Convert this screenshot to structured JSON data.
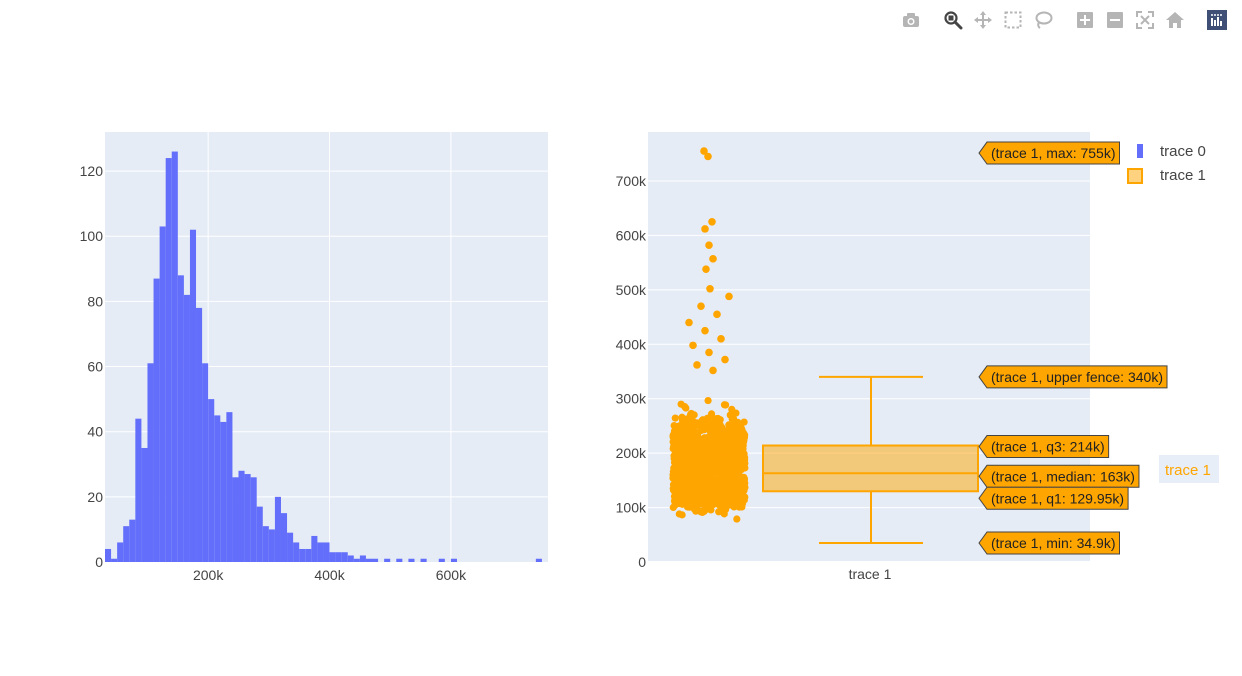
{
  "modebar": {
    "buttons": [
      {
        "icon": "camera-icon",
        "group": 0,
        "active": false
      },
      {
        "icon": "zoom-icon",
        "group": 1,
        "active": true
      },
      {
        "icon": "pan-icon",
        "group": 1,
        "active": false
      },
      {
        "icon": "box-select-icon",
        "group": 1,
        "active": false
      },
      {
        "icon": "lasso-select-icon",
        "group": 1,
        "active": false
      },
      {
        "icon": "zoom-in-icon",
        "group": 2,
        "active": false
      },
      {
        "icon": "zoom-out-icon",
        "group": 2,
        "active": false
      },
      {
        "icon": "autoscale-icon",
        "group": 2,
        "active": false
      },
      {
        "icon": "reset-axes-icon",
        "group": 2,
        "active": false
      },
      {
        "icon": "plotly-logo-icon",
        "group": 3,
        "active": false
      }
    ]
  },
  "colors": {
    "histogram": "#636efa",
    "box": "#ffa500",
    "plot_bg": "#e5ecf6",
    "grid": "#ffffff",
    "axis_text": "#444444"
  },
  "chart_data": [
    {
      "type": "bar",
      "subtype": "histogram",
      "series_name": "trace 0",
      "bin_width": 10000,
      "x_bin_starts": [
        30000,
        40000,
        50000,
        60000,
        70000,
        80000,
        90000,
        100000,
        110000,
        120000,
        130000,
        140000,
        150000,
        160000,
        170000,
        180000,
        190000,
        200000,
        210000,
        220000,
        230000,
        240000,
        250000,
        260000,
        270000,
        280000,
        290000,
        300000,
        310000,
        320000,
        330000,
        340000,
        350000,
        360000,
        370000,
        380000,
        390000,
        400000,
        410000,
        420000,
        430000,
        440000,
        450000,
        460000,
        470000,
        490000,
        510000,
        530000,
        550000,
        580000,
        600000,
        740000
      ],
      "counts": [
        4,
        1,
        6,
        11,
        13,
        44,
        35,
        61,
        87,
        103,
        124,
        126,
        88,
        82,
        102,
        78,
        61,
        50,
        45,
        43,
        46,
        26,
        28,
        27,
        26,
        17,
        11,
        10,
        20,
        15,
        9,
        6,
        4,
        4,
        8,
        6,
        6,
        3,
        3,
        3,
        2,
        1,
        2,
        1,
        1,
        1,
        1,
        1,
        1,
        1,
        1,
        1
      ],
      "xlim": [
        30000,
        760000
      ],
      "ylim": [
        0,
        132
      ],
      "x_ticks": [
        {
          "v": 200000,
          "label": "200k"
        },
        {
          "v": 400000,
          "label": "400k"
        },
        {
          "v": 600000,
          "label": "600k"
        }
      ],
      "y_ticks": [
        {
          "v": 0,
          "label": "0"
        },
        {
          "v": 20,
          "label": "20"
        },
        {
          "v": 40,
          "label": "40"
        },
        {
          "v": 60,
          "label": "60"
        },
        {
          "v": 80,
          "label": "80"
        },
        {
          "v": 100,
          "label": "100"
        },
        {
          "v": 120,
          "label": "120"
        }
      ],
      "grid": true
    },
    {
      "type": "box",
      "series_name": "trace 1",
      "category": "trace 1",
      "x_ticks": [
        "trace 1"
      ],
      "stats": {
        "min": 34900,
        "q1": 129950,
        "median": 163000,
        "q3": 214000,
        "upper_fence": 340000,
        "max": 755000
      },
      "points": "all",
      "outlier_points": [
        755000,
        745000,
        625000,
        612000,
        582000,
        557000,
        538000,
        502000,
        488000,
        470000,
        455000,
        440000,
        425000,
        410000,
        398000,
        385000,
        372000,
        362000,
        352000
      ],
      "ylim": [
        0,
        790000
      ],
      "y_ticks": [
        {
          "v": 0,
          "label": "0"
        },
        {
          "v": 100000,
          "label": "100k"
        },
        {
          "v": 200000,
          "label": "200k"
        },
        {
          "v": 300000,
          "label": "300k"
        },
        {
          "v": 400000,
          "label": "400k"
        },
        {
          "v": 500000,
          "label": "500k"
        },
        {
          "v": 600000,
          "label": "600k"
        },
        {
          "v": 700000,
          "label": "700k"
        }
      ],
      "grid": true,
      "hover_labels": [
        {
          "stat": "max",
          "text": "(trace 1, max: 755k)"
        },
        {
          "stat": "upper_fence",
          "text": "(trace 1, upper fence: 340k)"
        },
        {
          "stat": "q3",
          "text": "(trace 1, q3: 214k)"
        },
        {
          "stat": "median",
          "text": "(trace 1, median: 163k)"
        },
        {
          "stat": "q1",
          "text": "(trace 1, q1: 129.95k)"
        },
        {
          "stat": "min",
          "text": "(trace 1, min: 34.9k)"
        }
      ],
      "hover_name": "trace 1"
    }
  ],
  "legend": {
    "placement": "top-right",
    "items": [
      {
        "label": "trace 0",
        "color": "#636efa",
        "symbol": "bar"
      },
      {
        "label": "trace 1",
        "color": "#ffa500",
        "symbol": "box"
      }
    ]
  }
}
